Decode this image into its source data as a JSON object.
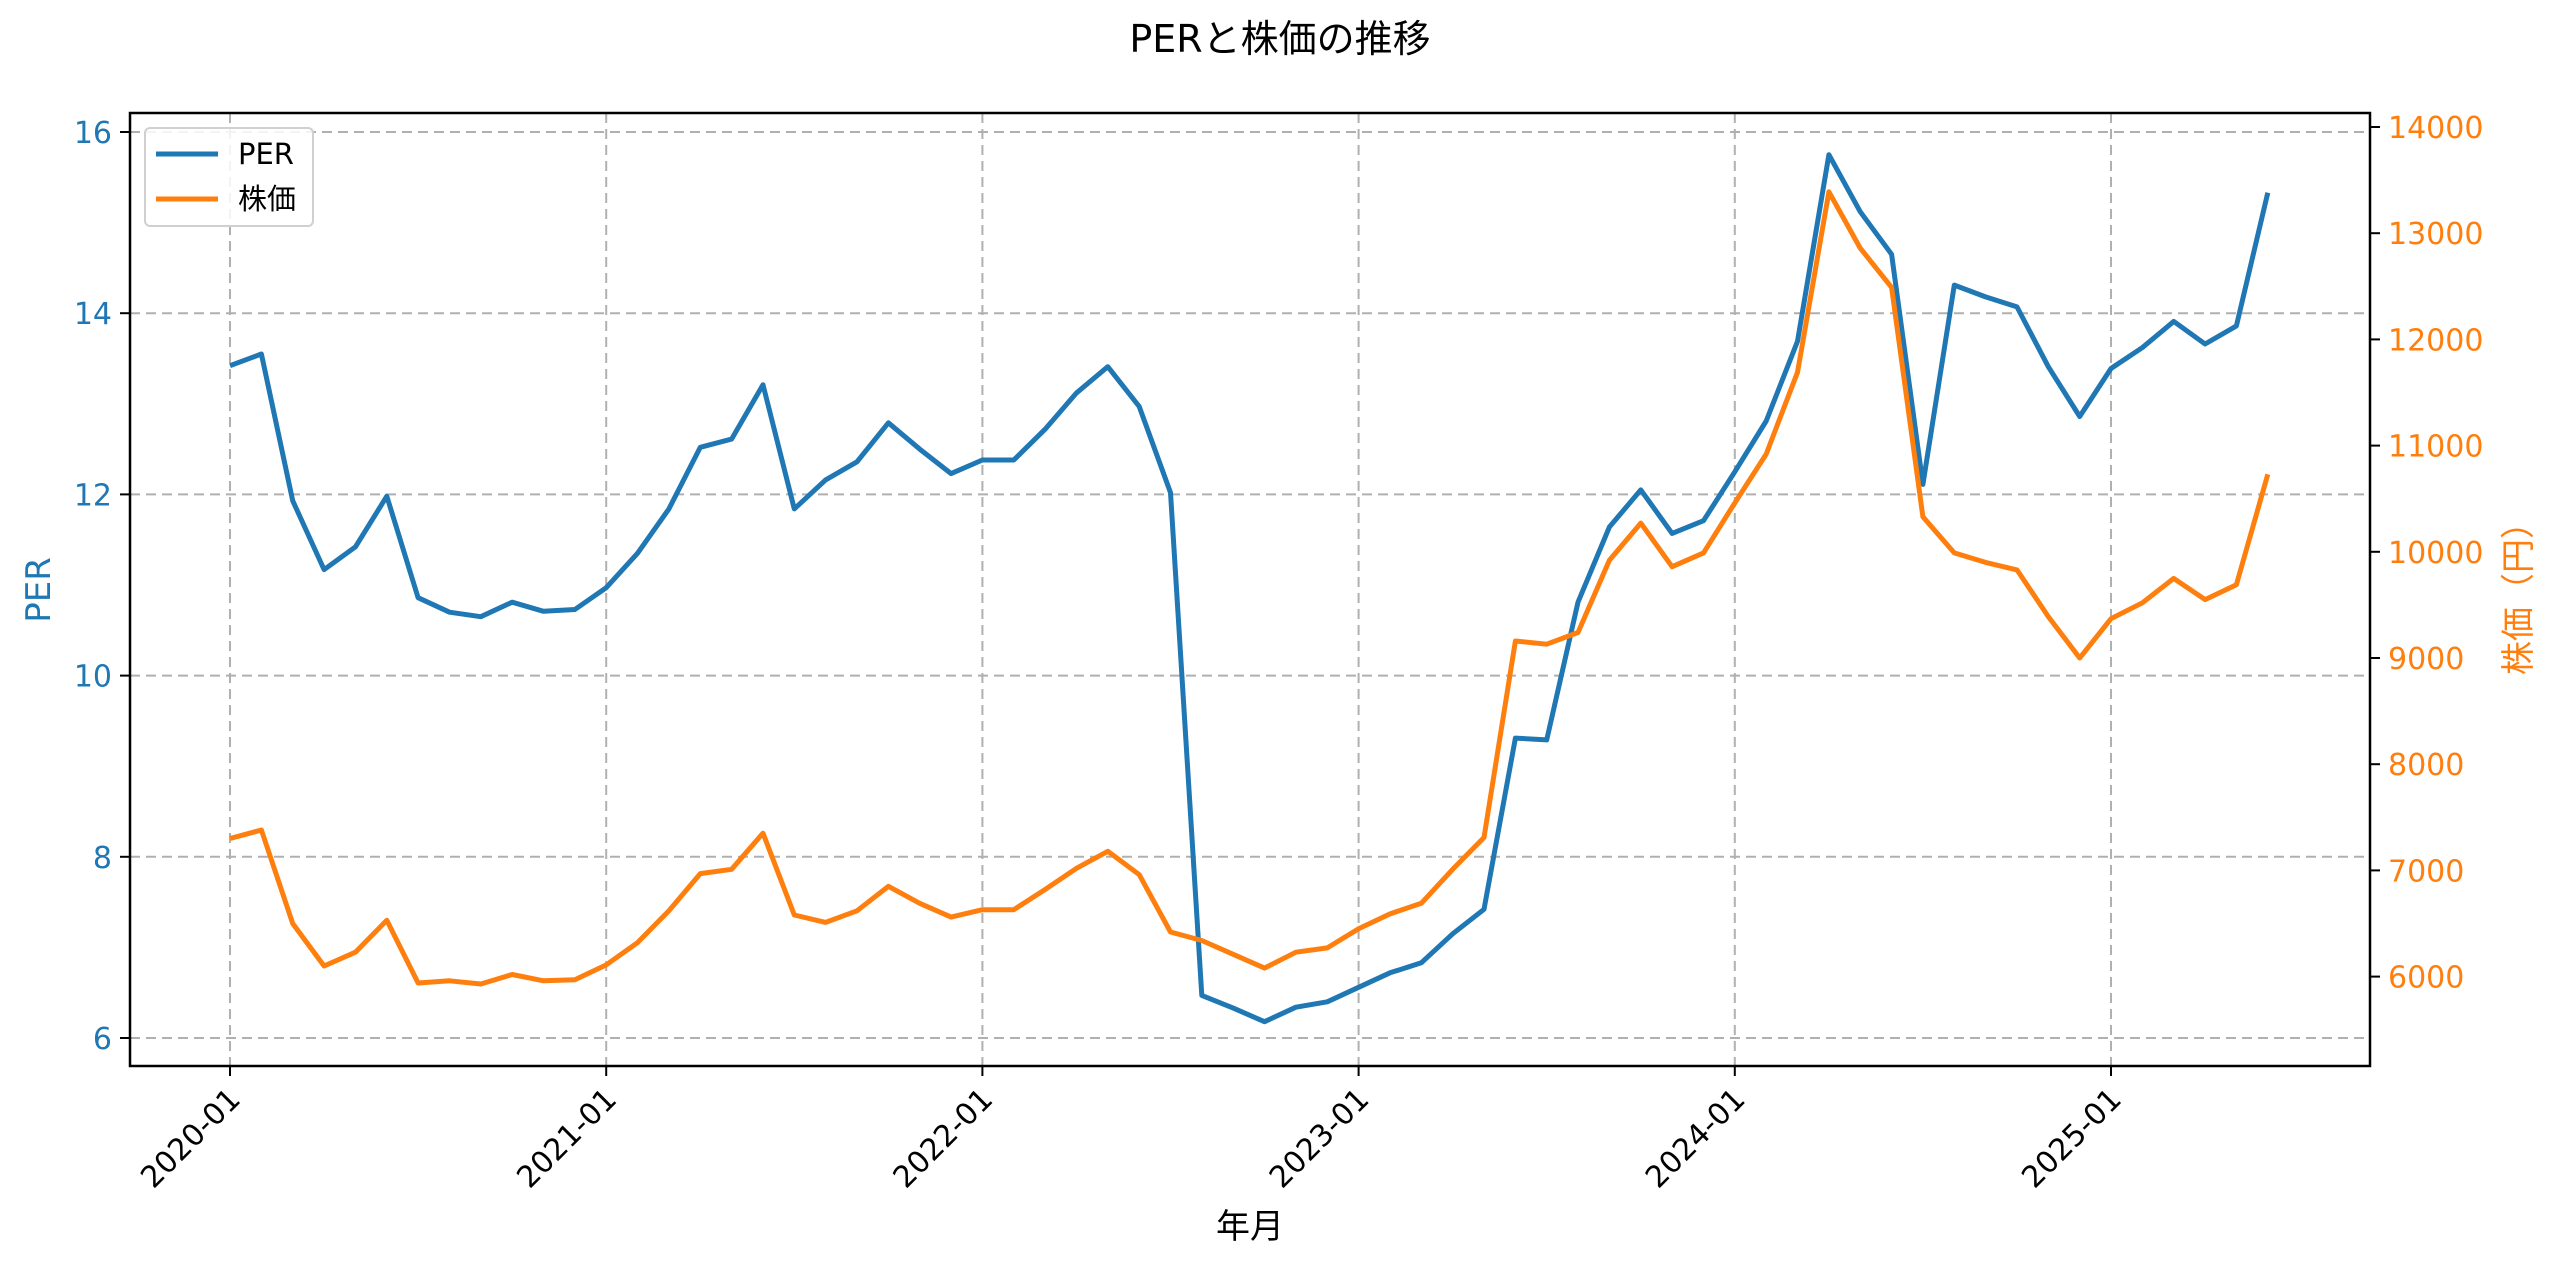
{
  "title": "PERと株価の推移",
  "xlabel": "年月",
  "ylabel_left": "PER",
  "ylabel_right": "株価（円）",
  "legend": [
    {
      "label": "PER",
      "color": "#1f77b4"
    },
    {
      "label": "株価",
      "color": "#ff7f0e"
    }
  ],
  "colors": {
    "per": "#1f77b4",
    "price": "#ff7f0e",
    "grid": "#b0b0b0",
    "axis": "#000000"
  },
  "x_ticks": [
    "2020-01",
    "2021-01",
    "2022-01",
    "2023-01",
    "2024-01",
    "2025-01"
  ],
  "y_left_ticks": [
    "6",
    "8",
    "10",
    "12",
    "14",
    "16"
  ],
  "y_right_ticks": [
    "6000",
    "7000",
    "8000",
    "9000",
    "10000",
    "11000",
    "12000",
    "13000",
    "14000"
  ],
  "chart_data": {
    "type": "line",
    "title": "PERと株価の推移",
    "xlabel": "年月",
    "ylabel": "PER",
    "ylabel_secondary": "株価（円）",
    "legend_position": "upper left",
    "grid": true,
    "ylim": [
      5.7,
      16.2
    ],
    "ylim_secondary": [
      5200,
      14150
    ],
    "x": [
      "2020-01",
      "2020-02",
      "2020-03",
      "2020-04",
      "2020-05",
      "2020-06",
      "2020-07",
      "2020-08",
      "2020-09",
      "2020-10",
      "2020-11",
      "2020-12",
      "2021-01",
      "2021-02",
      "2021-03",
      "2021-04",
      "2021-05",
      "2021-06",
      "2021-07",
      "2021-08",
      "2021-09",
      "2021-10",
      "2021-11",
      "2021-12",
      "2022-01",
      "2022-02",
      "2022-03",
      "2022-04",
      "2022-05",
      "2022-06",
      "2022-07",
      "2022-08",
      "2022-09",
      "2022-10",
      "2022-11",
      "2022-12",
      "2023-01",
      "2023-02",
      "2023-03",
      "2023-04",
      "2023-05",
      "2023-06",
      "2023-07",
      "2023-08",
      "2023-09",
      "2023-10",
      "2023-11",
      "2023-12",
      "2024-01",
      "2024-02",
      "2024-03",
      "2024-04",
      "2024-05",
      "2024-06",
      "2024-07",
      "2024-08",
      "2024-09",
      "2024-10",
      "2024-11",
      "2024-12",
      "2025-01",
      "2025-02",
      "2025-03",
      "2025-04",
      "2025-05",
      "2025-06"
    ],
    "series": [
      {
        "name": "PER",
        "axis": "left",
        "color": "#1f77b4",
        "values": [
          13.42,
          13.55,
          11.93,
          11.17,
          11.42,
          11.98,
          10.86,
          10.7,
          10.65,
          10.81,
          10.71,
          10.73,
          10.97,
          11.35,
          11.84,
          12.52,
          12.61,
          13.21,
          11.84,
          12.16,
          12.36,
          12.79,
          12.5,
          12.23,
          12.38,
          12.38,
          12.72,
          13.12,
          13.41,
          12.97,
          12.02,
          6.47,
          6.33,
          6.18,
          6.34,
          6.4,
          6.56,
          6.72,
          6.83,
          7.15,
          7.42,
          9.31,
          9.29,
          10.81,
          11.64,
          12.05,
          11.57,
          11.71,
          12.25,
          12.81,
          13.69,
          15.75,
          15.12,
          14.65,
          12.11,
          14.31,
          14.18,
          14.07,
          13.41,
          12.86,
          13.39,
          13.62,
          13.91,
          13.66,
          13.86,
          15.33
        ]
      },
      {
        "name": "株価",
        "axis": "right",
        "color": "#ff7f0e",
        "values": [
          7300,
          7380,
          6500,
          6100,
          6230,
          6530,
          5940,
          5960,
          5930,
          6020,
          5960,
          5970,
          6110,
          6320,
          6620,
          6970,
          7010,
          7350,
          6580,
          6510,
          6620,
          6850,
          6690,
          6560,
          6630,
          6630,
          6820,
          7020,
          7180,
          6960,
          6420,
          6340,
          6210,
          6080,
          6230,
          6270,
          6450,
          6590,
          6690,
          7010,
          7310,
          9160,
          9130,
          9240,
          9920,
          10270,
          9860,
          9990,
          10460,
          10920,
          11690,
          13390,
          12860,
          12490,
          10330,
          9990,
          9900,
          9830,
          9390,
          9000,
          9370,
          9520,
          9750,
          9550,
          9690,
          10730
        ]
      }
    ]
  }
}
